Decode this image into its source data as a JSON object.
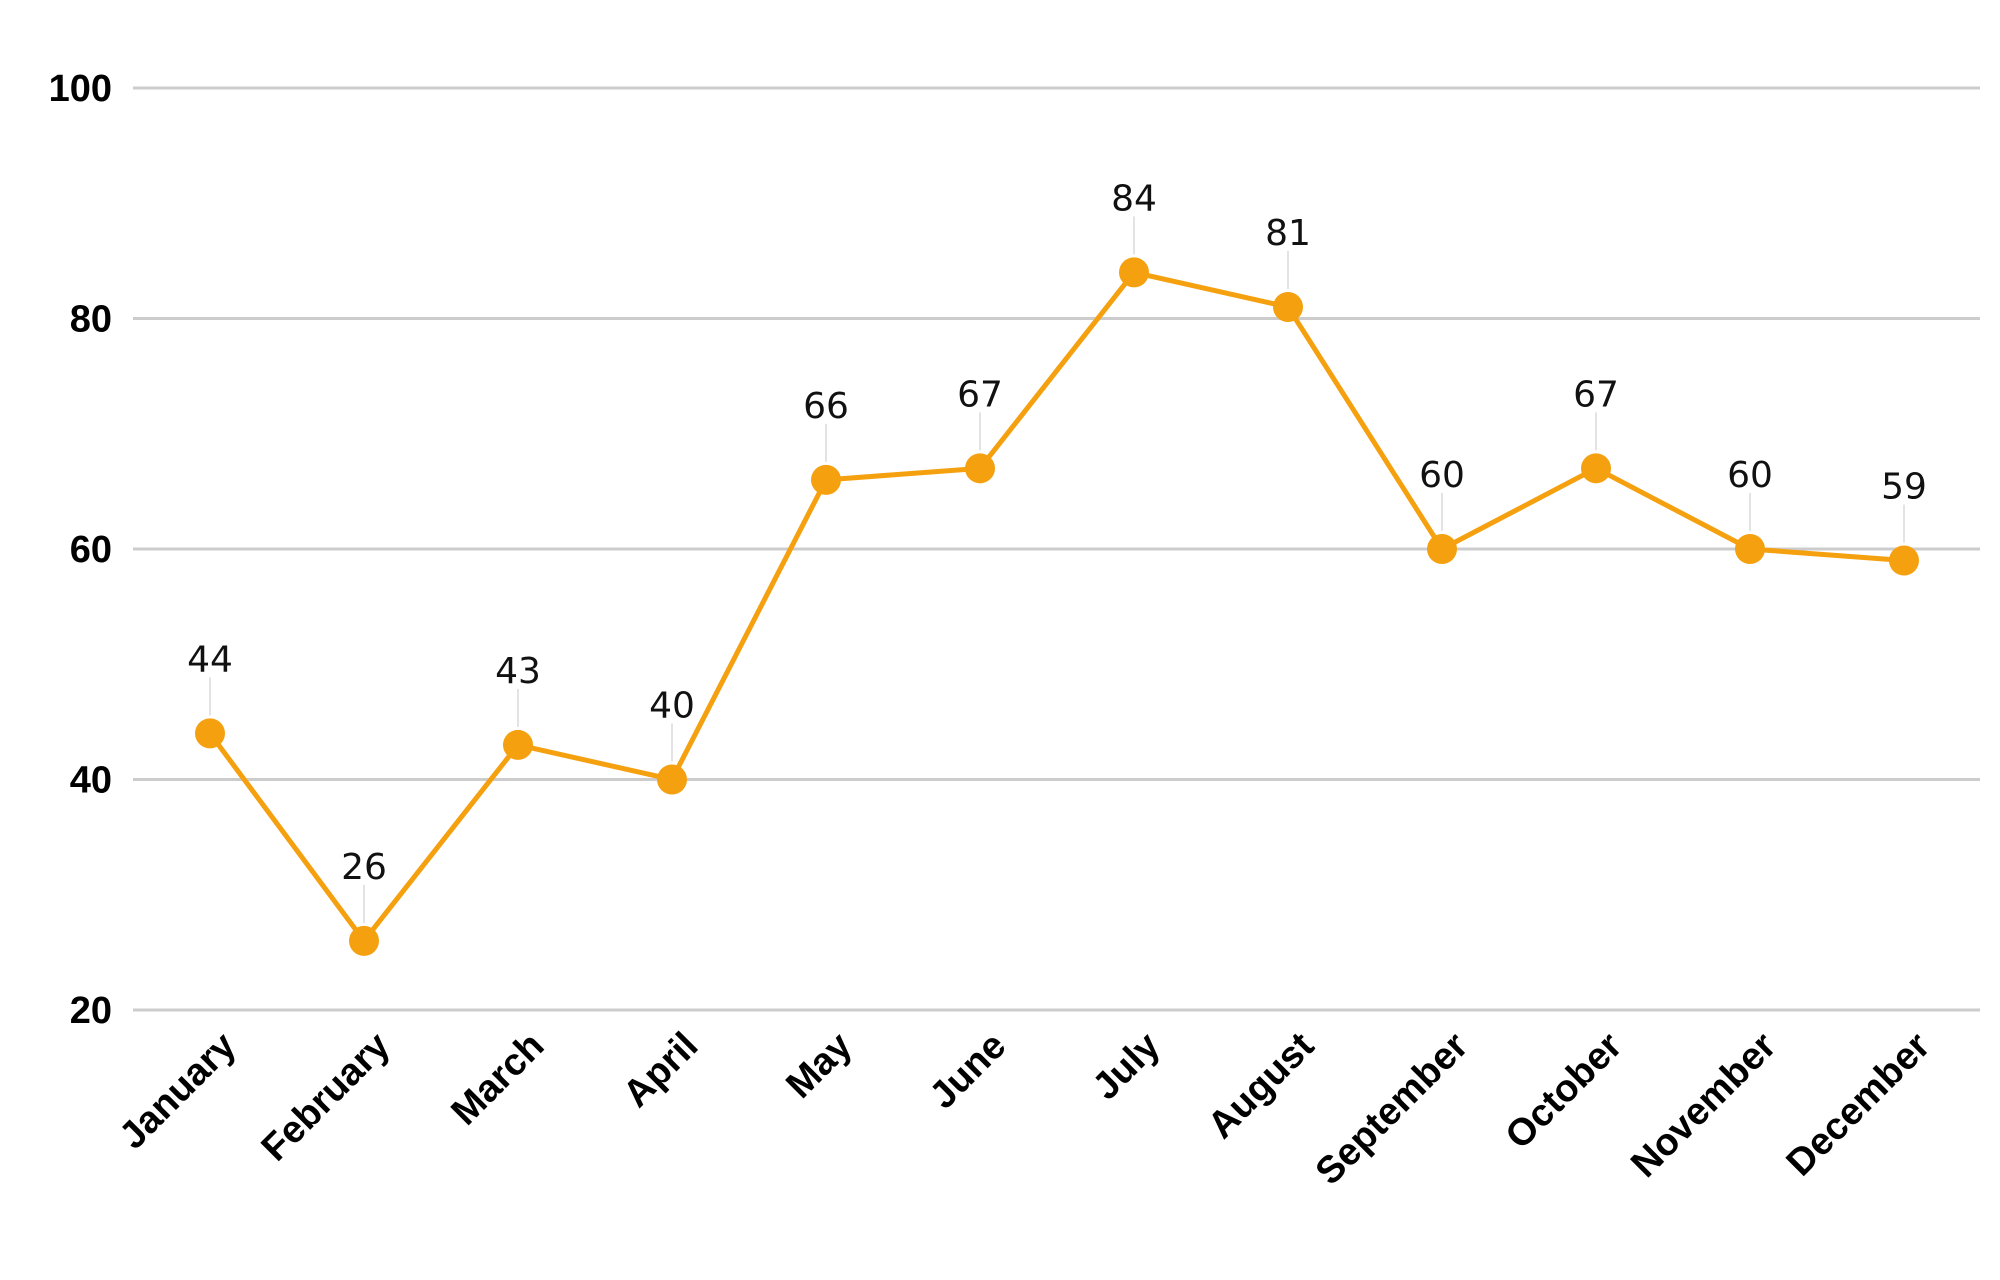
{
  "chart_data": {
    "type": "line",
    "categories": [
      "January",
      "February",
      "March",
      "April",
      "May",
      "June",
      "July",
      "August",
      "September",
      "October",
      "November",
      "December"
    ],
    "series": [
      {
        "values": [
          44,
          26,
          43,
          40,
          66,
          67,
          84,
          81,
          60,
          67,
          60,
          59
        ]
      }
    ],
    "ylim": [
      20,
      100
    ],
    "yticks": [
      20,
      40,
      60,
      80,
      100
    ],
    "grid": true,
    "data_labels": true,
    "color": "#f5a00f"
  }
}
